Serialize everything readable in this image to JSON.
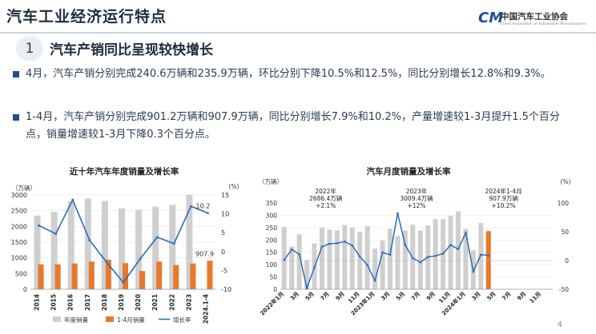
{
  "page": {
    "title": "汽车工业经济运行特点",
    "org_name": "中国汽车工业协会",
    "org_name_en": "China Association of Automobile Manufacturers",
    "logo_mark": "CM",
    "page_number": "4"
  },
  "section": {
    "number": "1",
    "heading": "汽车产销同比呈现较快增长"
  },
  "bullets": [
    "4月，汽车产销分别完成240.6万辆和235.9万辆，环比分别下降10.5%和12.5%，同比分别增长12.8%和9.3%。",
    "1-4月，汽车产销分别完成901.2万辆和907.9万辆，同比分别增长7.9%和10.2%，产量增速较1-3月提升1.5个百分点，销量增速较1-3月下降0.3个百分点。"
  ],
  "colors": {
    "grey_bar": "#cfcfcf",
    "orange_bar": "#e8792a",
    "line": "#2e6db6",
    "bullet": "#1f4e8c"
  },
  "chart_data": [
    {
      "type": "bar",
      "title": "近十年汽车年度销量及增长率",
      "ylabel_left": "（万辆）",
      "ylabel_right": "(%)",
      "categories": [
        "2014",
        "2015",
        "2016",
        "2017",
        "2018",
        "2019",
        "2020",
        "2021",
        "2022",
        "2023",
        "2024.1-4"
      ],
      "yticks_left": [
        "0",
        "500",
        "1000",
        "1500",
        "2000",
        "2500",
        "3000"
      ],
      "yticks_right": [
        "-10",
        "-5",
        "0",
        "5",
        "10",
        "15"
      ],
      "ylim_left": [
        0,
        3000
      ],
      "ylim_right": [
        -10,
        15
      ],
      "series": [
        {
          "name": "年度销量",
          "kind": "bar",
          "axis": "left",
          "values": [
            2349,
            2460,
            2803,
            2888,
            2808,
            2577,
            2531,
            2627,
            2686,
            3009,
            null
          ]
        },
        {
          "name": "1-4月销量",
          "kind": "bar",
          "axis": "left",
          "values": [
            790,
            790,
            820,
            880,
            940,
            830,
            580,
            880,
            770,
            820,
            908
          ]
        },
        {
          "name": "增长率",
          "kind": "line",
          "axis": "right",
          "values": [
            6.9,
            4.7,
            13.7,
            3.0,
            -2.8,
            -8.2,
            -1.9,
            3.8,
            2.1,
            12.0,
            10.2
          ]
        }
      ],
      "data_labels": {
        "last_line": "10.2",
        "last_bar": "907.9"
      },
      "legend": [
        "年度销量",
        "1-4月销量",
        "增长率"
      ],
      "legend_position": "bottom"
    },
    {
      "type": "bar",
      "title": "汽车月度销量及增长率",
      "ylabel_left": "（万辆）",
      "ylabel_right": "(%)",
      "xticks": [
        "2022年1月",
        "3月",
        "5月",
        "7月",
        "9月",
        "11月",
        "2023年1月",
        "3月",
        "5月",
        "7月",
        "9月",
        "11月",
        "2024年1月",
        "3月",
        "5月",
        "7月",
        "9月",
        "11月"
      ],
      "yticks_left": [
        "0",
        "50",
        "100",
        "150",
        "200",
        "250",
        "300",
        "350"
      ],
      "yticks_right": [
        "-50",
        "0",
        "50",
        "100"
      ],
      "ylim_left": [
        0,
        350
      ],
      "ylim_right": [
        -50,
        100
      ],
      "months": 36,
      "series": [
        {
          "name": "月度销量",
          "kind": "bar",
          "axis": "left",
          "values": [
            253,
            174,
            223,
            118,
            186,
            250,
            242,
            239,
            261,
            250,
            233,
            256,
            165,
            198,
            245,
            216,
            238,
            262,
            239,
            259,
            285,
            285,
            297,
            316,
            244,
            158,
            269,
            236
          ]
        },
        {
          "name": "增长率",
          "kind": "line",
          "axis": "right",
          "values": [
            1,
            19,
            11,
            -48,
            -12,
            24,
            29,
            30,
            33,
            26,
            7,
            -8,
            -35,
            14,
            10,
            82,
            27,
            4,
            -3,
            6,
            8,
            12,
            27,
            20,
            48,
            -19,
            10,
            9
          ]
        }
      ],
      "highlight_month_index": 27,
      "annotations": [
        {
          "title": "2022年",
          "value": "2686.4万辆",
          "growth": "+2.1%"
        },
        {
          "title": "2023年",
          "value": "3009.4万辆",
          "growth": "+12%"
        },
        {
          "title": "2024年1-4月",
          "value": "907.9万辆",
          "growth": "+10.2%"
        }
      ]
    }
  ]
}
